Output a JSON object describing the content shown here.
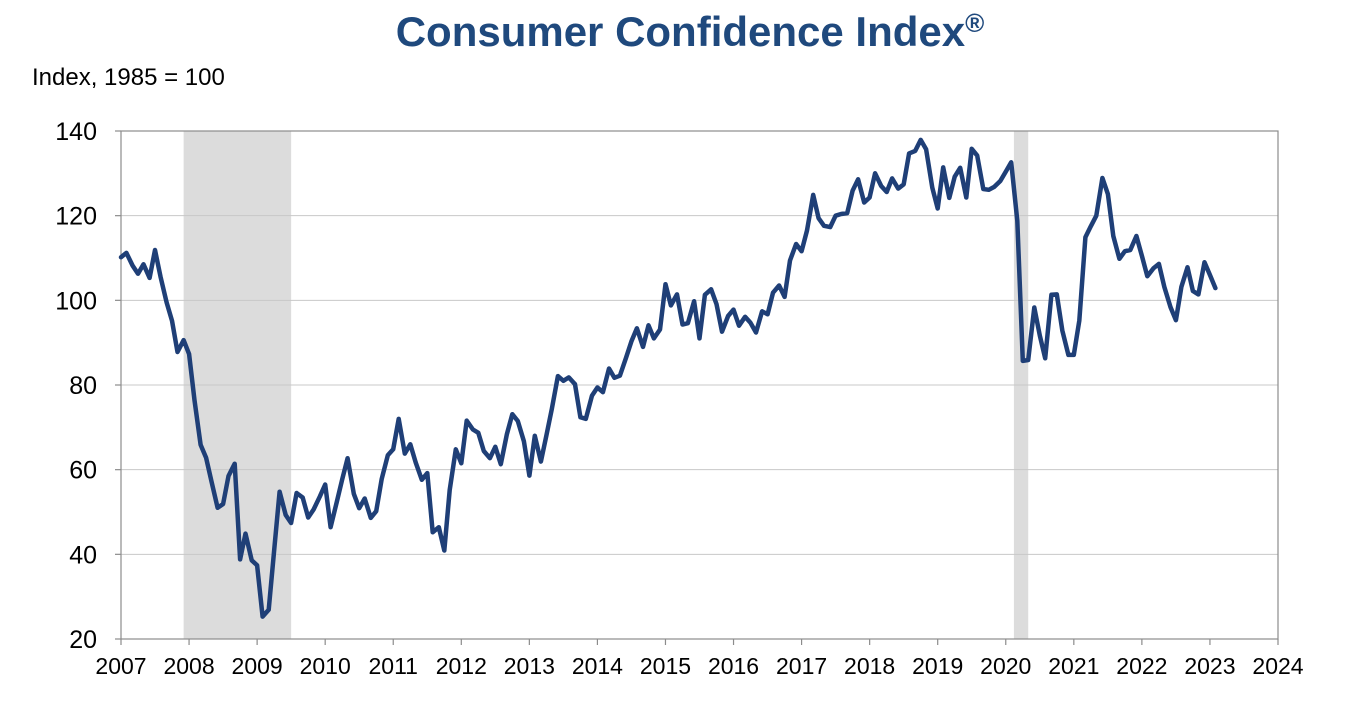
{
  "chart_data": {
    "type": "line",
    "title": "Consumer Confidence Index",
    "title_mark": "®",
    "ylabel": "Index, 1985 = 100",
    "xlabel": "",
    "ylim": [
      20,
      140
    ],
    "xlim": [
      2007,
      2024
    ],
    "yticks": [
      "20",
      "40",
      "60",
      "80",
      "100",
      "120",
      "140"
    ],
    "xticks": [
      "2007",
      "2008",
      "2009",
      "2010",
      "2011",
      "2012",
      "2013",
      "2014",
      "2015",
      "2016",
      "2017",
      "2018",
      "2019",
      "2020",
      "2021",
      "2022",
      "2023",
      "2024"
    ],
    "grid": "horizontal",
    "line_color": "#1f3f77",
    "shade_color": "#dcdcdc",
    "recessions": [
      [
        2007.92,
        2009.5
      ],
      [
        2020.12,
        2020.33
      ]
    ],
    "series": [
      {
        "x": [
          2007.0,
          2007.08,
          2007.17,
          2007.25,
          2007.33,
          2007.42,
          2007.5,
          2007.58,
          2007.67,
          2007.75,
          2007.83,
          2007.92,
          2008.0,
          2008.08,
          2008.17,
          2008.25,
          2008.33,
          2008.42,
          2008.5,
          2008.58,
          2008.67,
          2008.75,
          2008.83,
          2008.92,
          2009.0,
          2009.08,
          2009.17,
          2009.25,
          2009.33,
          2009.42,
          2009.5,
          2009.58,
          2009.67,
          2009.75,
          2009.83,
          2009.92,
          2010.0,
          2010.08,
          2010.17,
          2010.25,
          2010.33,
          2010.42,
          2010.5,
          2010.58,
          2010.67,
          2010.75,
          2010.83,
          2010.92,
          2011.0,
          2011.08,
          2011.17,
          2011.25,
          2011.33,
          2011.42,
          2011.5,
          2011.58,
          2011.67,
          2011.75,
          2011.83,
          2011.92,
          2012.0,
          2012.08,
          2012.17,
          2012.25,
          2012.33,
          2012.42,
          2012.5,
          2012.58,
          2012.67,
          2012.75,
          2012.83,
          2012.92,
          2013.0,
          2013.08,
          2013.17,
          2013.25,
          2013.33,
          2013.42,
          2013.5,
          2013.58,
          2013.67,
          2013.75,
          2013.83,
          2013.92,
          2014.0,
          2014.08,
          2014.17,
          2014.25,
          2014.33,
          2014.42,
          2014.5,
          2014.58,
          2014.67,
          2014.75,
          2014.83,
          2014.92,
          2015.0,
          2015.08,
          2015.17,
          2015.25,
          2015.33,
          2015.42,
          2015.5,
          2015.58,
          2015.67,
          2015.75,
          2015.83,
          2015.92,
          2016.0,
          2016.08,
          2016.17,
          2016.25,
          2016.33,
          2016.42,
          2016.5,
          2016.58,
          2016.67,
          2016.75,
          2016.83,
          2016.92,
          2017.0,
          2017.08,
          2017.17,
          2017.25,
          2017.33,
          2017.42,
          2017.5,
          2017.58,
          2017.67,
          2017.75,
          2017.83,
          2017.92,
          2018.0,
          2018.08,
          2018.17,
          2018.25,
          2018.33,
          2018.42,
          2018.5,
          2018.58,
          2018.67,
          2018.75,
          2018.83,
          2018.92,
          2019.0,
          2019.08,
          2019.17,
          2019.25,
          2019.33,
          2019.42,
          2019.5,
          2019.58,
          2019.67,
          2019.75,
          2019.83,
          2019.92,
          2020.0,
          2020.08,
          2020.17,
          2020.25,
          2020.33,
          2020.42,
          2020.5,
          2020.58,
          2020.67,
          2020.75,
          2020.83,
          2020.92,
          2021.0,
          2021.08,
          2021.17,
          2021.25,
          2021.33,
          2021.42,
          2021.5,
          2021.58,
          2021.67,
          2021.75,
          2021.83,
          2021.92,
          2022.0,
          2022.08,
          2022.17,
          2022.25,
          2022.33,
          2022.42,
          2022.5,
          2022.58,
          2022.67,
          2022.75,
          2022.83,
          2022.92,
          2023.0,
          2023.08
        ],
        "values": [
          110.2,
          111.2,
          108.2,
          106.3,
          108.5,
          105.3,
          111.9,
          105.6,
          99.5,
          95.2,
          87.8,
          90.6,
          87.3,
          76.4,
          65.9,
          62.8,
          57.2,
          51.0,
          51.9,
          58.5,
          61.4,
          38.8,
          44.9,
          38.6,
          37.4,
          25.3,
          26.9,
          40.8,
          54.8,
          49.3,
          47.4,
          54.5,
          53.4,
          48.7,
          50.6,
          53.6,
          56.5,
          46.4,
          52.3,
          57.7,
          62.7,
          54.3,
          50.9,
          53.2,
          48.6,
          50.2,
          57.8,
          63.4,
          64.8,
          72.0,
          63.8,
          66.0,
          61.7,
          57.6,
          59.2,
          45.2,
          46.4,
          40.9,
          55.2,
          64.8,
          61.5,
          71.6,
          69.5,
          68.7,
          64.4,
          62.7,
          65.4,
          61.3,
          68.4,
          73.1,
          71.5,
          66.7,
          58.6,
          68.0,
          61.9,
          68.1,
          74.3,
          82.1,
          81.0,
          81.8,
          80.2,
          72.4,
          72.0,
          77.5,
          79.4,
          78.3,
          83.9,
          81.7,
          82.2,
          86.4,
          90.3,
          93.4,
          89.0,
          94.1,
          91.0,
          93.1,
          103.8,
          98.8,
          101.4,
          94.3,
          94.6,
          99.8,
          91.0,
          101.3,
          102.6,
          99.1,
          92.6,
          96.3,
          97.8,
          94.0,
          96.1,
          94.7,
          92.4,
          97.4,
          96.7,
          101.8,
          103.5,
          100.8,
          109.4,
          113.3,
          111.6,
          116.5,
          124.9,
          119.4,
          117.6,
          117.3,
          120.0,
          120.4,
          120.6,
          125.9,
          128.6,
          123.1,
          124.3,
          130.0,
          127.0,
          125.6,
          128.8,
          126.4,
          127.4,
          134.7,
          135.3,
          137.9,
          135.7,
          126.6,
          121.7,
          131.4,
          124.2,
          129.2,
          131.3,
          124.3,
          135.8,
          134.2,
          126.3,
          126.1,
          126.8,
          128.2,
          130.4,
          132.6,
          118.8,
          85.7,
          85.9,
          98.3,
          91.7,
          86.3,
          101.3,
          101.4,
          92.9,
          87.1,
          87.1,
          95.2,
          114.9,
          117.5,
          120.0,
          128.9,
          125.1,
          115.2,
          109.8,
          111.6,
          111.9,
          115.2,
          110.5,
          105.7,
          107.6,
          108.6,
          103.2,
          98.4,
          95.3,
          103.2,
          107.8,
          102.2,
          101.4,
          109.0,
          106.0,
          102.9
        ]
      }
    ]
  }
}
